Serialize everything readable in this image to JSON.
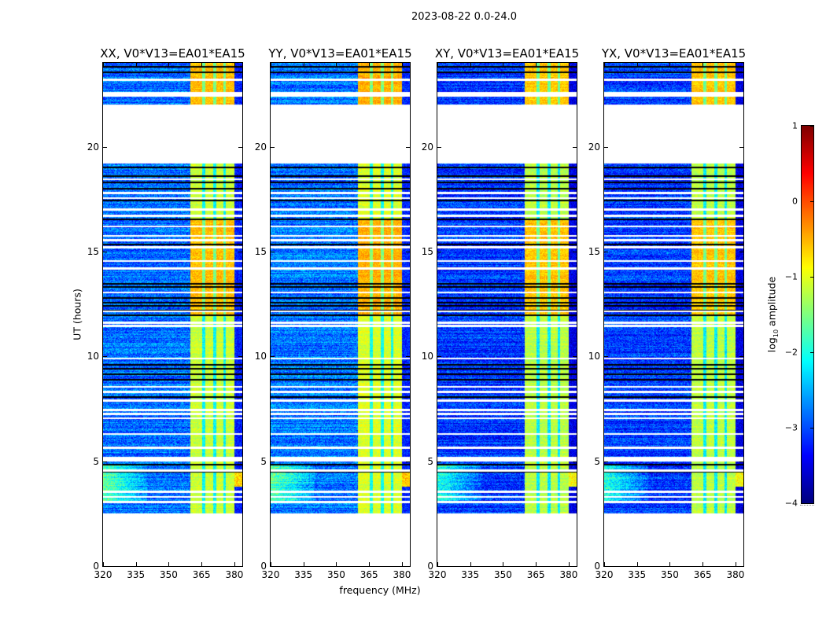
{
  "chart_data": {
    "type": "heatmap",
    "title": "2023-08-22 0.0-24.0",
    "xlabel": "frequency (MHz)",
    "ylabel": "UT (hours)",
    "xlim": [
      320,
      383.6
    ],
    "ylim": [
      0,
      24
    ],
    "xticks": [
      320,
      335,
      350,
      365,
      380
    ],
    "yticks": [
      0,
      5,
      10,
      15,
      20
    ],
    "colormap": "jet",
    "colorbar": {
      "label_prefix": "log",
      "label_sub": "10",
      "label_suffix": " amplitude",
      "range": [
        -4,
        1
      ],
      "ticks": [
        -4,
        -3,
        -2,
        -1,
        0,
        1
      ]
    },
    "panels": [
      {
        "title": "XX, V0*V13=EA01*EA15",
        "background_level": -2.85,
        "band_level": -1.15,
        "band_high_level": -0.55
      },
      {
        "title": "YY, V0*V13=EA01*EA15",
        "background_level": -2.8,
        "band_level": -1.05,
        "band_high_level": -0.5
      },
      {
        "title": "XY, V0*V13=EA01*EA15",
        "background_level": -3.1,
        "band_level": -1.2,
        "band_high_level": -0.6
      },
      {
        "title": "YX, V0*V13=EA01*EA15",
        "background_level": -3.1,
        "band_level": -1.2,
        "band_high_level": -0.6
      }
    ],
    "data_time_ranges_hours": [
      [
        2.5,
        19.2
      ],
      [
        22.0,
        24.0
      ]
    ],
    "rfi_band_mhz": [
      360,
      380
    ],
    "band_gaps_mhz": [
      366,
      371,
      375.5
    ],
    "high_band_time_ranges_hours": [
      [
        12.0,
        16.5
      ],
      [
        22.0,
        24.0
      ]
    ],
    "flagged_rows_white_hours": [
      3.05,
      3.3,
      3.55,
      4.55,
      5.05,
      5.15,
      5.65,
      6.3,
      7.05,
      7.25,
      7.45,
      7.9,
      8.3,
      8.55,
      9.9,
      11.45,
      11.6,
      12.15,
      13.05,
      14.2,
      14.55,
      15.2,
      15.55,
      15.75,
      16.2,
      16.7,
      17.0,
      17.55,
      17.8,
      18.45,
      22.45,
      22.55,
      23.2
    ],
    "flagged_rows_black_hours": [
      4.5,
      4.85,
      8.05,
      8.9,
      9.15,
      9.4,
      9.6,
      11.95,
      12.2,
      12.4,
      12.55,
      12.8,
      13.3,
      13.45,
      15.35,
      16.55,
      17.45,
      18.0,
      18.3,
      18.6,
      19.0,
      23.55,
      23.8
    ]
  }
}
